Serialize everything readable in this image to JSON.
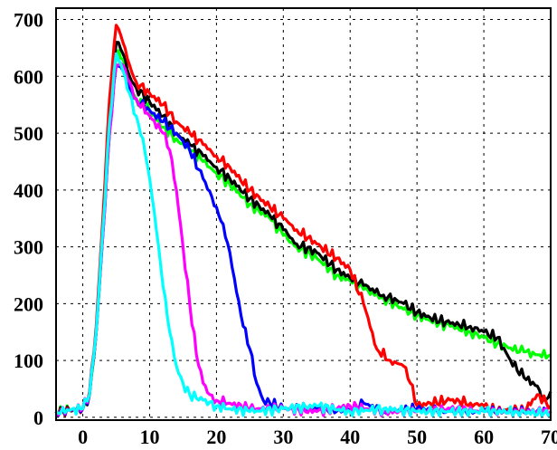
{
  "chart_data": {
    "type": "line",
    "title": "",
    "xlabel": "",
    "ylabel": "",
    "xlim": [
      -4,
      70
    ],
    "ylim": [
      -5,
      720
    ],
    "grid": true,
    "legend": "none",
    "x_ticks": [
      0,
      10,
      20,
      30,
      40,
      50,
      60,
      70
    ],
    "x_tick_labels": [
      "0",
      "10",
      "20",
      "30",
      "40",
      "50",
      "60",
      "70"
    ],
    "y_ticks": [
      0,
      100,
      200,
      300,
      400,
      500,
      600,
      700
    ],
    "y_tick_labels": [
      "0",
      "100",
      "200",
      "300",
      "400",
      "500",
      "600",
      "700"
    ],
    "series": [
      {
        "color": "#00ff00",
        "x": [
          -4,
          -2,
          0,
          1,
          2,
          3,
          4,
          5,
          6,
          7,
          8,
          10,
          12,
          14,
          16,
          18,
          20,
          22,
          25,
          28,
          30,
          32,
          35,
          38,
          40,
          42,
          45,
          48,
          50,
          52,
          55,
          58,
          60,
          62,
          64,
          66,
          68,
          70
        ],
        "y": [
          10,
          12,
          15,
          40,
          150,
          320,
          500,
          640,
          630,
          580,
          560,
          540,
          510,
          490,
          470,
          450,
          430,
          410,
          375,
          350,
          320,
          300,
          280,
          250,
          240,
          225,
          210,
          190,
          180,
          170,
          160,
          150,
          140,
          130,
          122,
          115,
          110,
          110
        ]
      },
      {
        "color": "#000000",
        "x": [
          -4,
          -2,
          0,
          1,
          2,
          3,
          4,
          5,
          6,
          7,
          8,
          10,
          12,
          14,
          16,
          18,
          20,
          22,
          25,
          28,
          30,
          32,
          35,
          38,
          40,
          42,
          45,
          48,
          50,
          52,
          55,
          58,
          60,
          62,
          64,
          66,
          68,
          69,
          70
        ],
        "y": [
          10,
          12,
          15,
          40,
          150,
          330,
          520,
          660,
          640,
          600,
          580,
          555,
          530,
          500,
          480,
          460,
          440,
          420,
          385,
          355,
          330,
          305,
          290,
          260,
          245,
          232,
          215,
          200,
          185,
          175,
          165,
          160,
          150,
          140,
          100,
          70,
          55,
          30,
          45
        ]
      },
      {
        "color": "#ff0000",
        "x": [
          -4,
          -2,
          0,
          1,
          2,
          3,
          4,
          5,
          6,
          7,
          8,
          10,
          12,
          14,
          16,
          18,
          20,
          22,
          25,
          28,
          30,
          32,
          35,
          38,
          40,
          42,
          44,
          46,
          48,
          49,
          50,
          52,
          55,
          58,
          60,
          62,
          64,
          66,
          68,
          70
        ],
        "y": [
          10,
          12,
          15,
          45,
          160,
          350,
          560,
          690,
          660,
          620,
          590,
          570,
          550,
          520,
          500,
          480,
          460,
          440,
          400,
          370,
          350,
          330,
          305,
          280,
          260,
          200,
          120,
          100,
          90,
          60,
          20,
          25,
          30,
          25,
          20,
          10,
          15,
          10,
          40,
          20
        ]
      },
      {
        "color": "#0000ff",
        "x": [
          -4,
          -2,
          0,
          1,
          2,
          3,
          4,
          5,
          6,
          7,
          8,
          10,
          12,
          14,
          16,
          18,
          20,
          21,
          22,
          23,
          24,
          25,
          26,
          27,
          28,
          30,
          35,
          40,
          42,
          45,
          50,
          55,
          60,
          65,
          70
        ],
        "y": [
          10,
          12,
          15,
          40,
          150,
          320,
          500,
          620,
          610,
          580,
          560,
          540,
          520,
          500,
          470,
          420,
          370,
          340,
          290,
          220,
          160,
          120,
          60,
          30,
          25,
          15,
          15,
          10,
          25,
          10,
          15,
          10,
          10,
          10,
          10
        ]
      },
      {
        "color": "#ff00ff",
        "x": [
          -4,
          -2,
          0,
          1,
          2,
          3,
          4,
          5,
          6,
          7,
          8,
          10,
          12,
          13,
          14,
          15,
          16,
          17,
          18,
          19,
          20,
          22,
          25,
          30,
          35,
          40,
          45,
          50,
          55,
          60,
          65,
          70
        ],
        "y": [
          10,
          12,
          15,
          40,
          150,
          320,
          500,
          620,
          620,
          590,
          560,
          530,
          500,
          470,
          400,
          300,
          200,
          110,
          60,
          40,
          30,
          25,
          15,
          15,
          10,
          20,
          10,
          10,
          15,
          10,
          10,
          10
        ]
      },
      {
        "color": "#00ffff",
        "x": [
          -4,
          -2,
          0,
          1,
          2,
          3,
          4,
          5,
          6,
          7,
          8,
          9,
          10,
          11,
          12,
          13,
          14,
          15,
          16,
          18,
          20,
          22,
          25,
          30,
          35,
          40,
          45,
          50,
          55,
          60,
          65,
          70
        ],
        "y": [
          10,
          12,
          15,
          40,
          150,
          330,
          520,
          640,
          610,
          570,
          530,
          490,
          420,
          330,
          230,
          150,
          90,
          60,
          40,
          30,
          20,
          15,
          10,
          15,
          20,
          10,
          15,
          10,
          10,
          10,
          10,
          5
        ]
      }
    ]
  }
}
